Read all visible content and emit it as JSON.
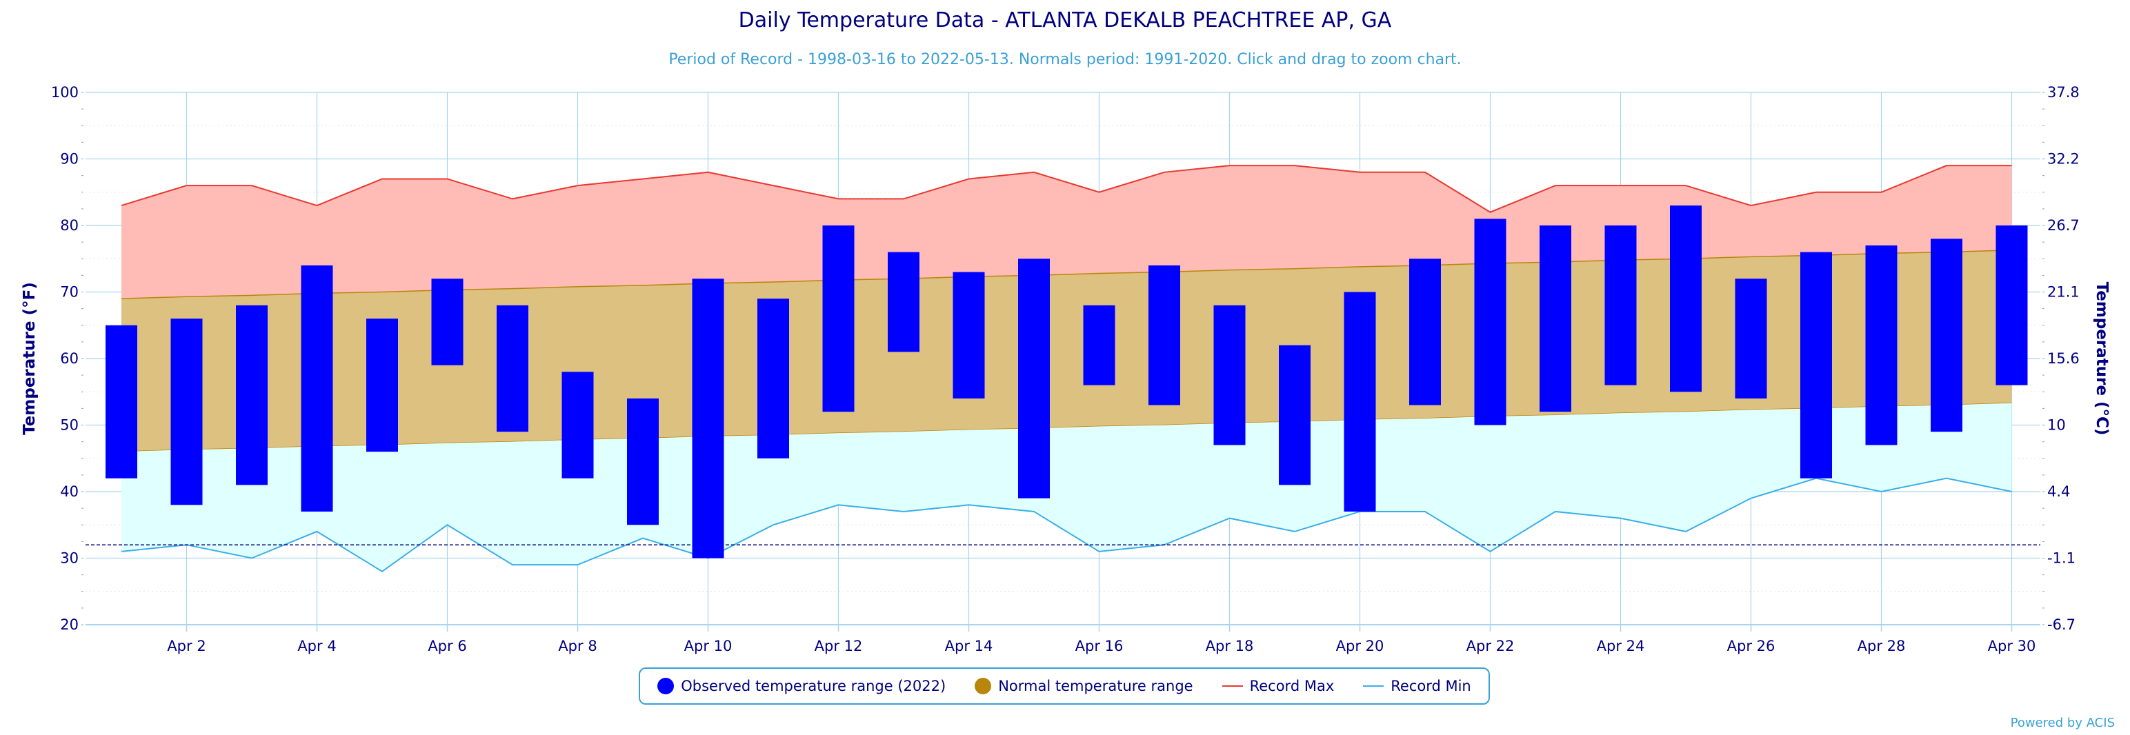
{
  "header": {
    "title": "Daily Temperature Data - ATLANTA DEKALB PEACHTREE AP, GA",
    "subtitle": "Period of Record - 1998-03-16 to 2022-05-13. Normals period: 1991-2020. Click and drag to zoom chart."
  },
  "legend": {
    "observed": "Observed temperature range (2022)",
    "normal": "Normal temperature range",
    "record_max": "Record Max",
    "record_min": "Record Min"
  },
  "credits": "Powered by ACIS",
  "colors": {
    "observed": "#0000ff",
    "normal_fill": "#dcc181",
    "normal_line": "#b8860b",
    "normal_legend": "#b8860b",
    "record_max_line": "#e8382f",
    "record_max_fill": "#ffbbb5",
    "record_min_line": "#3aaee8",
    "record_min_fill": "#e0ffff",
    "freezing_line": "#000080",
    "axis_text": "#000080",
    "grid": "#a8d4ee"
  },
  "chart_data": {
    "type": "bar",
    "xlabel": "",
    "ylabel": "Temperature (°F)",
    "ylabel_right": "Temperature (°C)",
    "ylim": [
      20,
      100
    ],
    "yticks": [
      20,
      30,
      40,
      50,
      60,
      70,
      80,
      90,
      100
    ],
    "yticks_right": [
      "-6.7",
      "-1.1",
      "4.4",
      "10",
      "15.6",
      "21.1",
      "26.7",
      "32.2",
      "37.8"
    ],
    "xticks": [
      "Apr 2",
      "Apr 4",
      "Apr 6",
      "Apr 8",
      "Apr 10",
      "Apr 12",
      "Apr 14",
      "Apr 16",
      "Apr 18",
      "Apr 20",
      "Apr 22",
      "Apr 24",
      "Apr 26",
      "Apr 28",
      "Apr 30"
    ],
    "freezing": 32,
    "days": [
      1,
      2,
      3,
      4,
      5,
      6,
      7,
      8,
      9,
      10,
      11,
      12,
      13,
      14,
      15,
      16,
      17,
      18,
      19,
      20,
      21,
      22,
      23,
      24,
      25,
      26,
      27,
      28,
      29,
      30
    ],
    "observed": {
      "max": [
        65,
        66,
        68,
        74,
        66,
        72,
        68,
        58,
        54,
        72,
        69,
        80,
        76,
        73,
        75,
        68,
        74,
        68,
        62,
        70,
        75,
        81,
        80,
        80,
        83,
        72,
        76,
        77,
        78,
        80
      ],
      "min": [
        42,
        38,
        41,
        37,
        46,
        59,
        49,
        42,
        35,
        30,
        45,
        52,
        61,
        54,
        39,
        56,
        53,
        47,
        41,
        37,
        53,
        50,
        52,
        56,
        55,
        54,
        42,
        47,
        49,
        56
      ]
    },
    "normal_max": [
      69,
      69.3,
      69.5,
      69.8,
      70,
      70.3,
      70.5,
      70.8,
      71,
      71.3,
      71.5,
      71.8,
      72,
      72.3,
      72.5,
      72.8,
      73,
      73.3,
      73.5,
      73.8,
      74,
      74.3,
      74.5,
      74.8,
      75,
      75.3,
      75.5,
      75.8,
      76,
      76.3
    ],
    "normal_min": [
      46,
      46.3,
      46.5,
      46.8,
      47,
      47.3,
      47.5,
      47.8,
      48,
      48.3,
      48.5,
      48.8,
      49,
      49.3,
      49.5,
      49.8,
      50,
      50.3,
      50.5,
      50.8,
      51,
      51.3,
      51.5,
      51.8,
      52,
      52.3,
      52.5,
      52.8,
      53,
      53.3
    ],
    "record_max": [
      83,
      86,
      86,
      83,
      87,
      87,
      84,
      86,
      87,
      88,
      86,
      84,
      84,
      87,
      88,
      85,
      88,
      89,
      89,
      88,
      88,
      82,
      86,
      86,
      86,
      83,
      85,
      85,
      89,
      89
    ],
    "record_min": [
      31,
      32,
      30,
      34,
      28,
      35,
      29,
      29,
      33,
      30,
      35,
      38,
      37,
      38,
      37,
      31,
      32,
      36,
      34,
      37,
      37,
      31,
      37,
      36,
      34,
      39,
      42,
      40,
      42,
      40
    ]
  }
}
